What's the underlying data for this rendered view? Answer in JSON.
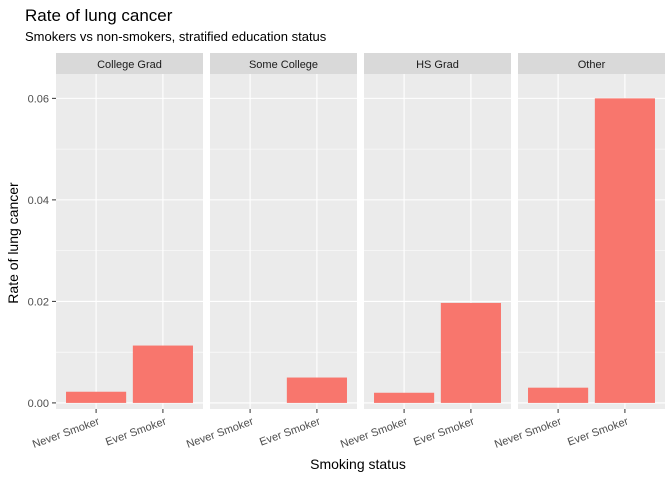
{
  "chart_data": {
    "type": "bar",
    "title": "Rate of lung cancer",
    "subtitle": "Smokers vs non-smokers, stratified education status",
    "xlabel": "Smoking status",
    "ylabel": "Rate of lung cancer",
    "ylim": [
      -0.0012,
      0.0648
    ],
    "yticks": [
      0.0,
      0.02,
      0.04,
      0.06
    ],
    "ytick_labels": [
      "0.00",
      "0.02",
      "0.04",
      "0.06"
    ],
    "categories": [
      "Never Smoker",
      "Ever Smoker"
    ],
    "bar_color": "#F8766D",
    "panel_bg": "#EBEBEB",
    "strip_bg": "#D9D9D9",
    "grid": true,
    "facets": [
      {
        "label": "College Grad",
        "values": [
          0.0022,
          0.0113
        ]
      },
      {
        "label": "Some College",
        "values": [
          0.0,
          0.005
        ]
      },
      {
        "label": "HS Grad",
        "values": [
          0.002,
          0.0197
        ]
      },
      {
        "label": "Other",
        "values": [
          0.003,
          0.06
        ]
      }
    ]
  }
}
